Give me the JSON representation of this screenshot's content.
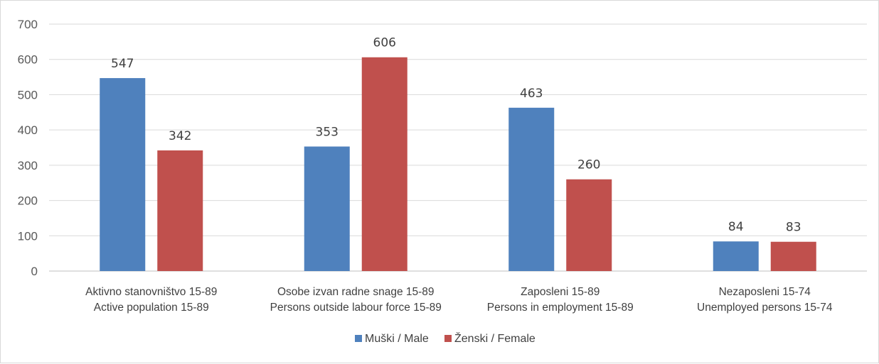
{
  "chart_data": {
    "type": "bar",
    "categories": [
      [
        "Aktivno stanovništvo 15-89",
        "Active population 15-89"
      ],
      [
        "Osobe izvan radne snage 15-89",
        "Persons outside labour force 15-89"
      ],
      [
        "Zaposleni 15-89",
        "Persons in employment 15-89"
      ],
      [
        "Nezaposleni 15-74",
        "Unemployed persons 15-74"
      ]
    ],
    "series": [
      {
        "name": "Muški / Male",
        "color": "#4f81bd",
        "values": [
          547,
          353,
          463,
          84
        ]
      },
      {
        "name": "Ženski / Female",
        "color": "#c0504d",
        "values": [
          342,
          606,
          260,
          83
        ]
      }
    ],
    "ylim": [
      0,
      700
    ],
    "yticks": [
      "0",
      "100",
      "200",
      "300",
      "400",
      "500",
      "600",
      "700"
    ],
    "grid": true,
    "legend": "bottom-center"
  }
}
